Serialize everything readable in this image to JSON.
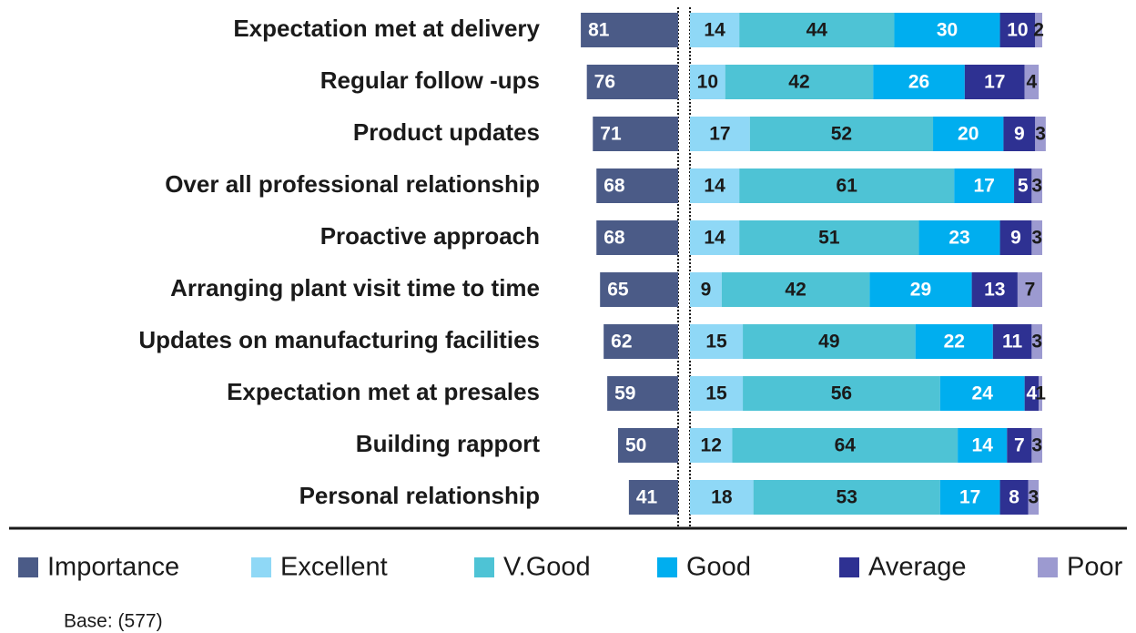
{
  "chart_data": {
    "type": "bar",
    "categories": [
      "Expectation met at delivery",
      "Regular follow -ups",
      "Product updates",
      "Over all professional relationship",
      "Proactive approach",
      "Arranging plant visit time to time",
      "Updates on manufacturing facilities",
      "Expectation met at presales",
      "Building rapport",
      "Personal relationship"
    ],
    "series": [
      {
        "name": "Importance",
        "color": "#4b5b87",
        "values": [
          81,
          76,
          71,
          68,
          68,
          65,
          62,
          59,
          50,
          41
        ]
      },
      {
        "name": "Excellent",
        "color": "#8fd8f6",
        "values": [
          14,
          10,
          17,
          14,
          14,
          9,
          15,
          15,
          12,
          18
        ]
      },
      {
        "name": "V.Good",
        "color": "#4ec3d5",
        "values": [
          44,
          42,
          52,
          61,
          51,
          42,
          49,
          56,
          64,
          53
        ]
      },
      {
        "name": "Good",
        "color": "#00aeef",
        "values": [
          30,
          26,
          20,
          17,
          23,
          29,
          22,
          24,
          14,
          17
        ]
      },
      {
        "name": "Average",
        "color": "#2e3192",
        "values": [
          10,
          17,
          9,
          5,
          9,
          13,
          11,
          4,
          7,
          8
        ]
      },
      {
        "name": "Poor",
        "color": "#9c9ad0",
        "values": [
          2,
          4,
          3,
          3,
          3,
          7,
          3,
          1,
          3,
          3
        ]
      }
    ],
    "note": "Base: (577)"
  }
}
